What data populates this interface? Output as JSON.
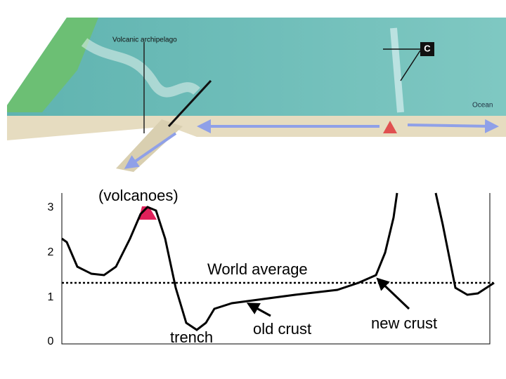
{
  "block_diagram": {
    "labels": {
      "archipelago": "Volcanic archipelago",
      "marker": "C",
      "ocean": "Ocean"
    }
  },
  "profile": {
    "y_ticks": [
      "3",
      "2",
      "1",
      "0"
    ],
    "annotations": {
      "volcanoes": "(volcanoes)",
      "world_average": "World average",
      "trench": "trench",
      "old_crust": "old crust",
      "new_crust": "new crust"
    }
  }
}
